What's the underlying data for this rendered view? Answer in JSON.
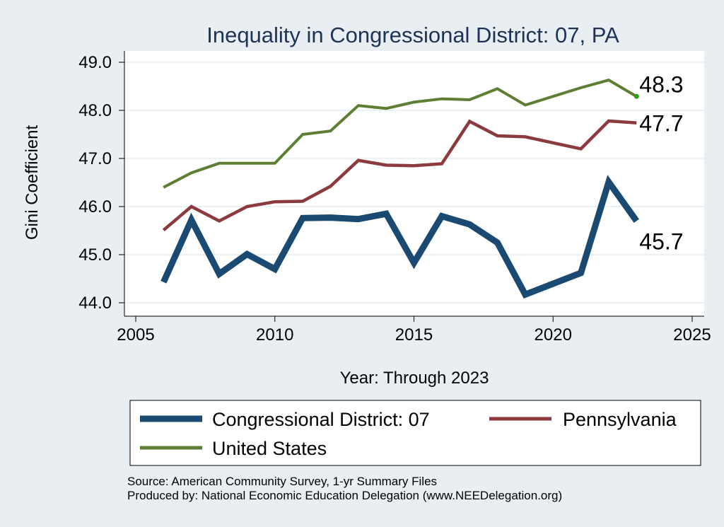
{
  "chart_data": {
    "type": "line",
    "title": "Inequality in Congressional District:  07, PA",
    "xlabel": "Year: Through 2023",
    "ylabel": "Gini Coefficient",
    "xlim": [
      2005,
      2025
    ],
    "ylim": [
      44.0,
      49.0
    ],
    "x_ticks": [
      "2005",
      "2010",
      "2015",
      "2020",
      "2025"
    ],
    "y_ticks": [
      "44.0",
      "45.0",
      "46.0",
      "47.0",
      "48.0",
      "49.0"
    ],
    "series": [
      {
        "name": "Congressional District:  07",
        "color": "#1a4a72",
        "x": [
          2006,
          2007,
          2008,
          2009,
          2010,
          2011,
          2012,
          2013,
          2014,
          2015,
          2016,
          2017,
          2018,
          2019,
          2021,
          2022,
          2023
        ],
        "values": [
          44.43,
          45.72,
          44.6,
          45.01,
          44.7,
          45.76,
          45.77,
          45.74,
          45.85,
          44.83,
          45.8,
          45.63,
          45.25,
          44.17,
          44.62,
          46.51,
          45.7
        ],
        "end_label": "45.7"
      },
      {
        "name": "Pennsylvania",
        "color": "#8b3a3e",
        "x": [
          2006,
          2007,
          2008,
          2009,
          2010,
          2011,
          2012,
          2013,
          2014,
          2015,
          2016,
          2017,
          2018,
          2019,
          2021,
          2022,
          2023
        ],
        "values": [
          45.51,
          46.0,
          45.7,
          46.0,
          46.1,
          46.11,
          46.42,
          46.96,
          46.86,
          46.85,
          46.89,
          47.77,
          47.47,
          47.45,
          47.2,
          47.78,
          47.74
        ],
        "end_label": "47.7"
      },
      {
        "name": "United States",
        "color": "#5e7f33",
        "x": [
          2006,
          2007,
          2008,
          2009,
          2010,
          2011,
          2012,
          2013,
          2014,
          2015,
          2016,
          2017,
          2018,
          2019,
          2021,
          2022,
          2023
        ],
        "values": [
          46.4,
          46.7,
          46.9,
          46.9,
          46.9,
          47.5,
          47.57,
          48.1,
          48.04,
          48.17,
          48.24,
          48.22,
          48.45,
          48.11,
          48.47,
          48.63,
          48.29
        ],
        "end_label": "48.3"
      }
    ],
    "legend": {
      "position": "bottom",
      "entries": [
        "Congressional District:  07",
        "Pennsylvania",
        "United States"
      ]
    },
    "notes": [
      "Source: American Community Survey, 1-yr Summary Files",
      "Produced by: National Economic Education Delegation (www.NEEDelegation.org)"
    ]
  }
}
